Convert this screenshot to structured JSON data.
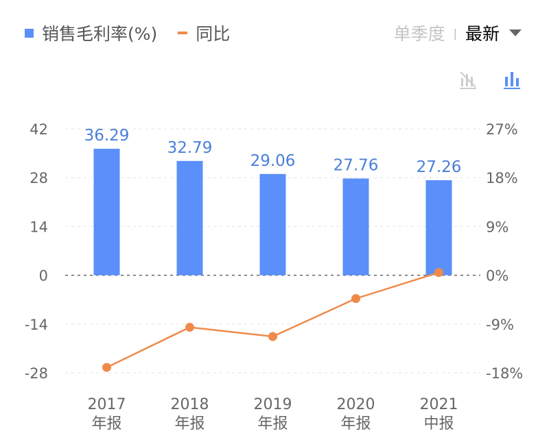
{
  "legend": {
    "bar_label": "销售毛利率(%)",
    "line_label": "同比"
  },
  "controls": {
    "quarter": "单季度",
    "separator": "|",
    "latest": "最新"
  },
  "icons": [
    "line-chart-toggle-icon",
    "bar-chart-icon"
  ],
  "chart_data": {
    "type": "bar+line",
    "categories": [
      "2017\n年报",
      "2018\n年报",
      "2019\n年报",
      "2020\n年报",
      "2021\n中报"
    ],
    "category_years": [
      "2017",
      "2018",
      "2019",
      "2020",
      "2021"
    ],
    "category_types": [
      "年报",
      "年报",
      "年报",
      "年报",
      "中报"
    ],
    "series": [
      {
        "name": "销售毛利率(%)",
        "type": "bar",
        "axis": "left",
        "values": [
          36.29,
          32.79,
          29.06,
          27.76,
          27.26
        ],
        "labels": [
          "36.29",
          "32.79",
          "29.06",
          "27.76",
          "27.26"
        ],
        "color": "#5b8ff9"
      },
      {
        "name": "同比",
        "type": "line",
        "axis": "right",
        "values": [
          -17.0,
          -9.6,
          -11.3,
          -4.3,
          0.5
        ],
        "color": "#ef8a4a"
      }
    ],
    "left_axis": {
      "ylim": [
        -28,
        42
      ],
      "ticks": [
        "42",
        "28",
        "14",
        "0",
        "-14",
        "-28"
      ]
    },
    "right_axis": {
      "ylim": [
        -18,
        27
      ],
      "ticks": [
        "27%",
        "18%",
        "9%",
        "0%",
        "-9%",
        "-18%"
      ]
    },
    "grid": true
  }
}
